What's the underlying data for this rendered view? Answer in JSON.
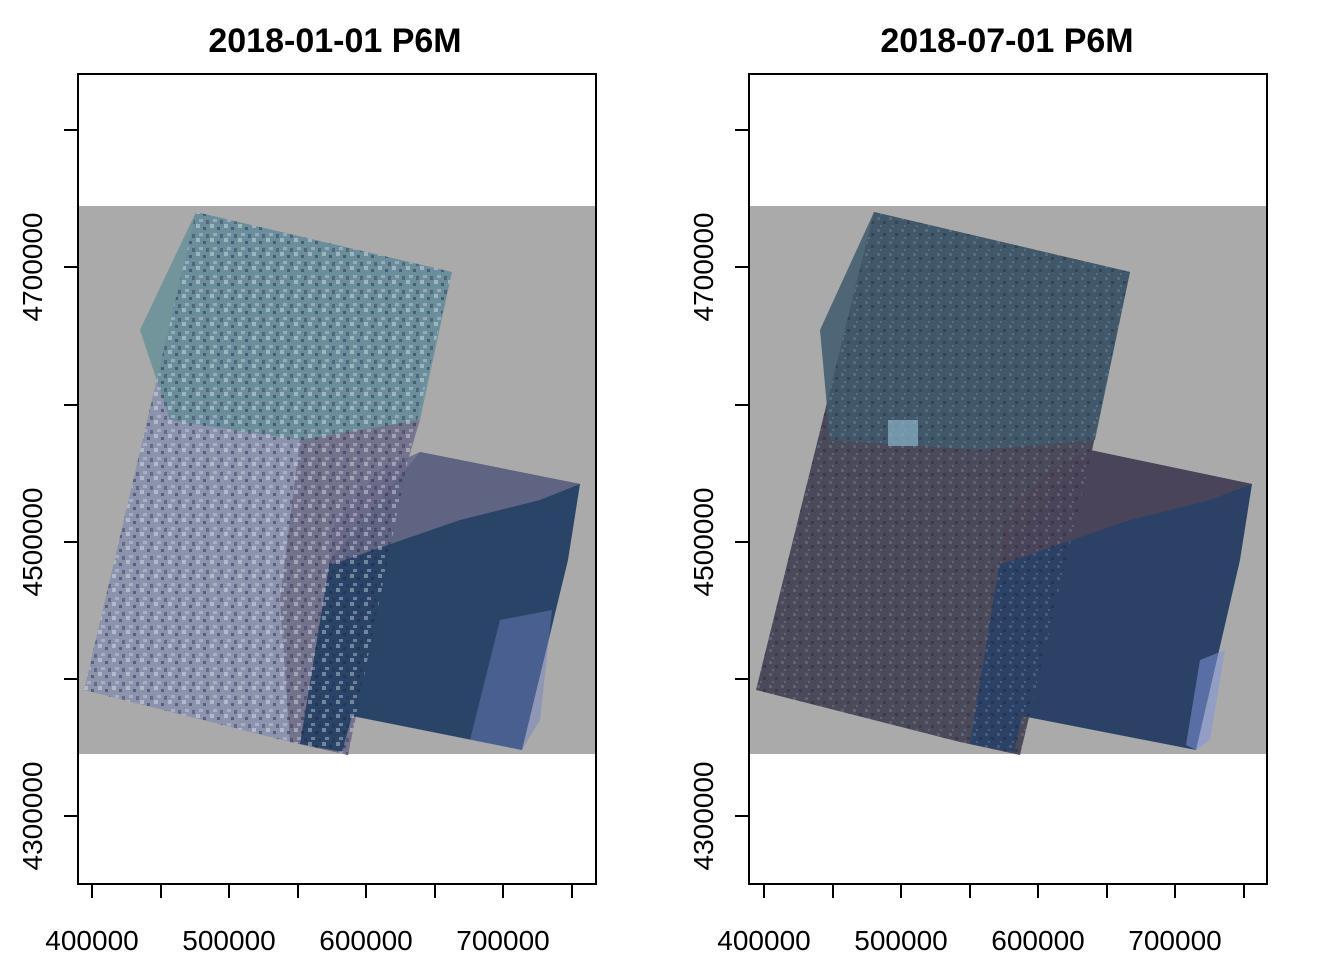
{
  "panels": [
    {
      "title": "2018-01-01 P6M",
      "x_tick_labels": [
        "400000",
        "500000",
        "600000",
        "700000"
      ],
      "y_tick_labels": [
        "4300000",
        "4500000",
        "4700000"
      ]
    },
    {
      "title": "2018-07-01 P6M",
      "x_tick_labels": [
        "400000",
        "500000",
        "600000",
        "700000"
      ],
      "y_tick_labels": [
        "4300000",
        "4500000",
        "4700000"
      ]
    }
  ],
  "colors": {
    "background_extent": "#aaaaaa",
    "panel1_land_nw": "#5f8c95",
    "panel1_land_sw": "#8c93ad",
    "panel1_land_east": "#6a6580",
    "panel1_water": "#2a4468",
    "panel2_land_nw": "#3e5b6c",
    "panel2_land_sw": "#4a4a5a",
    "panel2_land_east": "#4c4558",
    "panel2_water": "#2b4266"
  }
}
